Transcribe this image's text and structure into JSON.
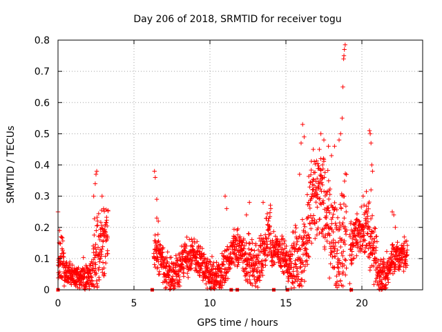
{
  "chart_data": {
    "type": "scatter",
    "title": "Day 206 of 2018, SRMTID for receiver togu",
    "xlabel": "GPS time / hours",
    "ylabel": "SRMTID / TECUs",
    "xlim": [
      0,
      24
    ],
    "ylim": [
      0,
      0.8
    ],
    "xticks": [
      0,
      5,
      10,
      15,
      20
    ],
    "xtick_labels": [
      "0",
      "5",
      "10",
      "15",
      "20"
    ],
    "yticks": [
      0,
      0.1,
      0.2,
      0.3,
      0.4,
      0.5,
      0.6,
      0.7,
      0.8
    ],
    "ytick_labels": [
      "0",
      "0.1",
      "0.2",
      "0.3",
      "0.4",
      "0.5",
      "0.6",
      "0.7",
      "0.8"
    ],
    "grid": true,
    "marker": "plus",
    "color": "#ff0000",
    "segments": [
      {
        "start": 0.0,
        "end": 0.4,
        "base": 0.08,
        "spread": 0.1
      },
      {
        "start": 0.4,
        "end": 1.6,
        "base": 0.03,
        "spread": 0.05
      },
      {
        "start": 1.6,
        "end": 2.3,
        "base": 0.06,
        "spread": 0.08
      },
      {
        "start": 2.3,
        "end": 3.3,
        "base": 0.1,
        "spread": 0.18
      },
      {
        "start": 6.3,
        "end": 8.5,
        "base": 0.09,
        "spread": 0.09
      },
      {
        "start": 8.5,
        "end": 11.5,
        "base": 0.07,
        "spread": 0.08
      },
      {
        "start": 11.5,
        "end": 12.5,
        "base": 0.1,
        "spread": 0.1
      },
      {
        "start": 12.5,
        "end": 14.0,
        "base": 0.16,
        "spread": 0.12
      },
      {
        "start": 14.0,
        "end": 15.3,
        "base": 0.1,
        "spread": 0.08
      },
      {
        "start": 15.3,
        "end": 16.5,
        "base": 0.17,
        "spread": 0.18
      },
      {
        "start": 16.5,
        "end": 18.0,
        "base": 0.22,
        "spread": 0.22
      },
      {
        "start": 18.0,
        "end": 19.0,
        "base": 0.25,
        "spread": 0.25
      },
      {
        "start": 19.2,
        "end": 20.0,
        "base": 0.14,
        "spread": 0.1
      },
      {
        "start": 20.0,
        "end": 21.0,
        "base": 0.18,
        "spread": 0.16
      },
      {
        "start": 21.0,
        "end": 23.0,
        "base": 0.08,
        "spread": 0.08
      }
    ],
    "highlights": [
      {
        "x": 0.0,
        "y": 0.25
      },
      {
        "x": 0.1,
        "y": 0.19
      },
      {
        "x": 0.2,
        "y": 0.17
      },
      {
        "x": 2.35,
        "y": 0.3
      },
      {
        "x": 2.45,
        "y": 0.34
      },
      {
        "x": 2.5,
        "y": 0.37
      },
      {
        "x": 2.55,
        "y": 0.38
      },
      {
        "x": 2.9,
        "y": 0.3
      },
      {
        "x": 3.0,
        "y": 0.26
      },
      {
        "x": 6.35,
        "y": 0.38
      },
      {
        "x": 6.4,
        "y": 0.36
      },
      {
        "x": 6.5,
        "y": 0.29
      },
      {
        "x": 6.5,
        "y": 0.23
      },
      {
        "x": 6.6,
        "y": 0.22
      },
      {
        "x": 11.0,
        "y": 0.3
      },
      {
        "x": 11.1,
        "y": 0.26
      },
      {
        "x": 12.4,
        "y": 0.24
      },
      {
        "x": 12.6,
        "y": 0.28
      },
      {
        "x": 13.5,
        "y": 0.28
      },
      {
        "x": 14.0,
        "y": 0.26
      },
      {
        "x": 15.9,
        "y": 0.37
      },
      {
        "x": 16.0,
        "y": 0.47
      },
      {
        "x": 16.1,
        "y": 0.53
      },
      {
        "x": 16.2,
        "y": 0.49
      },
      {
        "x": 16.8,
        "y": 0.45
      },
      {
        "x": 17.2,
        "y": 0.45
      },
      {
        "x": 17.3,
        "y": 0.5
      },
      {
        "x": 17.5,
        "y": 0.48
      },
      {
        "x": 17.8,
        "y": 0.46
      },
      {
        "x": 18.0,
        "y": 0.43
      },
      {
        "x": 18.2,
        "y": 0.46
      },
      {
        "x": 18.5,
        "y": 0.48
      },
      {
        "x": 18.6,
        "y": 0.5
      },
      {
        "x": 18.7,
        "y": 0.55
      },
      {
        "x": 18.75,
        "y": 0.65
      },
      {
        "x": 18.8,
        "y": 0.74
      },
      {
        "x": 18.82,
        "y": 0.75
      },
      {
        "x": 18.85,
        "y": 0.77
      },
      {
        "x": 18.9,
        "y": 0.785
      },
      {
        "x": 19.2,
        "y": 0.02
      },
      {
        "x": 19.25,
        "y": 0.0
      },
      {
        "x": 20.5,
        "y": 0.51
      },
      {
        "x": 20.55,
        "y": 0.5
      },
      {
        "x": 20.6,
        "y": 0.47
      },
      {
        "x": 20.65,
        "y": 0.4
      },
      {
        "x": 20.7,
        "y": 0.38
      },
      {
        "x": 20.6,
        "y": 0.32
      },
      {
        "x": 22.0,
        "y": 0.25
      },
      {
        "x": 22.1,
        "y": 0.24
      },
      {
        "x": 22.2,
        "y": 0.2
      }
    ],
    "zero_markers": [
      0.0,
      6.2,
      11.4,
      11.8,
      14.2,
      15.1,
      19.3
    ]
  }
}
